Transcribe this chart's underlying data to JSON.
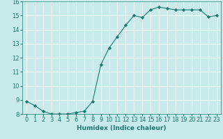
{
  "x": [
    0,
    1,
    2,
    3,
    4,
    5,
    6,
    7,
    8,
    9,
    10,
    11,
    12,
    13,
    14,
    15,
    16,
    17,
    18,
    19,
    20,
    21,
    22,
    23
  ],
  "y": [
    8.9,
    8.6,
    8.2,
    8.0,
    8.0,
    8.0,
    8.1,
    8.2,
    8.9,
    11.5,
    12.7,
    13.5,
    14.3,
    15.0,
    14.85,
    15.4,
    15.6,
    15.5,
    15.4,
    15.4,
    15.4,
    15.4,
    14.9,
    15.0
  ],
  "line_color": "#1a7a6e",
  "marker": "D",
  "marker_size": 2.2,
  "bg_color": "#c8eaea",
  "grid_color": "#ffffff",
  "xlabel": "Humidex (Indice chaleur)",
  "ylim": [
    8,
    16
  ],
  "xlim": [
    -0.5,
    23.5
  ],
  "yticks": [
    8,
    9,
    10,
    11,
    12,
    13,
    14,
    15,
    16
  ],
  "xticks": [
    0,
    1,
    2,
    3,
    4,
    5,
    6,
    7,
    8,
    9,
    10,
    11,
    12,
    13,
    14,
    15,
    16,
    17,
    18,
    19,
    20,
    21,
    22,
    23
  ],
  "xlabel_fontsize": 6.5,
  "tick_fontsize": 6.0,
  "linewidth": 0.8,
  "spine_color": "#1a7a6e",
  "grid_linewidth": 0.6
}
